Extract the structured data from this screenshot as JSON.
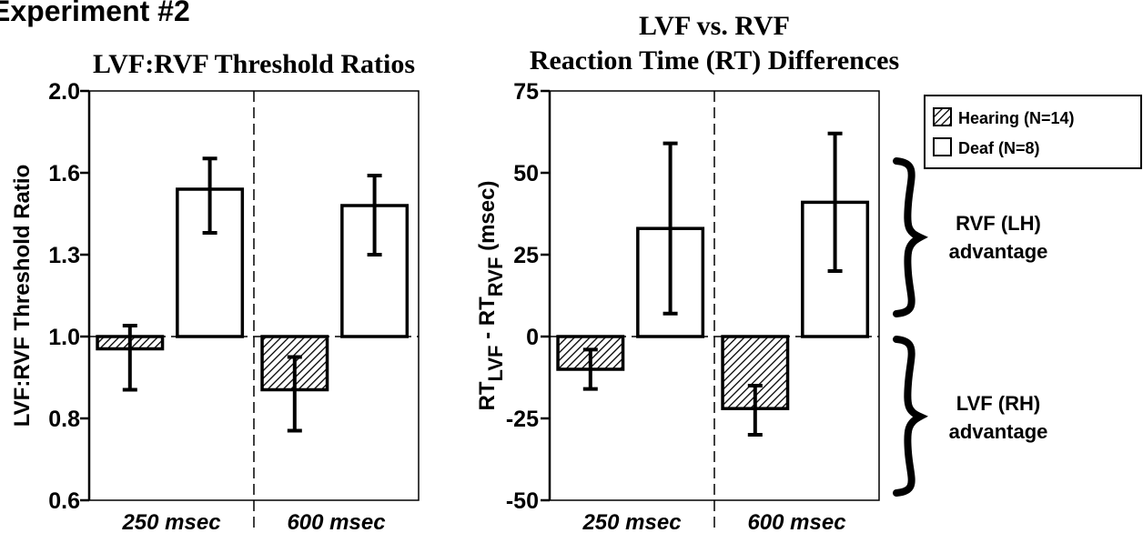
{
  "page_title": "Experiment #2",
  "legend": {
    "hearing": "Hearing (N=14)",
    "deaf": "Deaf (N=8)"
  },
  "annotations": {
    "upper_line1": "RVF (LH)",
    "upper_line2": "advantage",
    "lower_line1": "LVF (RH)",
    "lower_line2": "advantage"
  },
  "chart_data": [
    {
      "type": "bar",
      "title": "LVF:RVF Threshold Ratios",
      "ylabel": "LVF:RVF Threshold Ratio",
      "categories": [
        "250 msec",
        "600 msec"
      ],
      "baseline": 1.0,
      "ylim": [
        0.6,
        2.0
      ],
      "yticks": [
        0.6,
        0.8,
        1.0,
        1.3,
        1.6,
        2.0
      ],
      "ytick_labels": [
        "0.6",
        "0.8",
        "1.0",
        "1.3",
        "1.6",
        "2.0"
      ],
      "series": [
        {
          "name": "Hearing (N=14)",
          "values": [
            0.97,
            0.87
          ],
          "err_low": [
            0.87,
            0.77
          ],
          "err_high": [
            1.04,
            0.95
          ]
        },
        {
          "name": "Deaf (N=8)",
          "values": [
            1.54,
            1.48
          ],
          "err_low": [
            1.38,
            1.3
          ],
          "err_high": [
            1.67,
            1.59
          ]
        }
      ]
    },
    {
      "type": "bar",
      "title": "LVF vs. RVF\nReaction Time (RT) Differences",
      "ylabel": "RTLVF - RTRVF (msec)",
      "categories": [
        "250 msec",
        "600 msec"
      ],
      "baseline": 0,
      "ylim": [
        -50,
        75
      ],
      "yticks": [
        -50,
        -25,
        0,
        25,
        50,
        75
      ],
      "ytick_labels": [
        "-50",
        "-25",
        "0",
        "25",
        "50",
        "75"
      ],
      "series": [
        {
          "name": "Hearing (N=14)",
          "values": [
            -10,
            -22
          ],
          "err_low": [
            -16,
            -30
          ],
          "err_high": [
            -4,
            -15
          ]
        },
        {
          "name": "Deaf (N=8)",
          "values": [
            33,
            41
          ],
          "err_low": [
            7,
            20
          ],
          "err_high": [
            59,
            62
          ]
        }
      ]
    }
  ]
}
